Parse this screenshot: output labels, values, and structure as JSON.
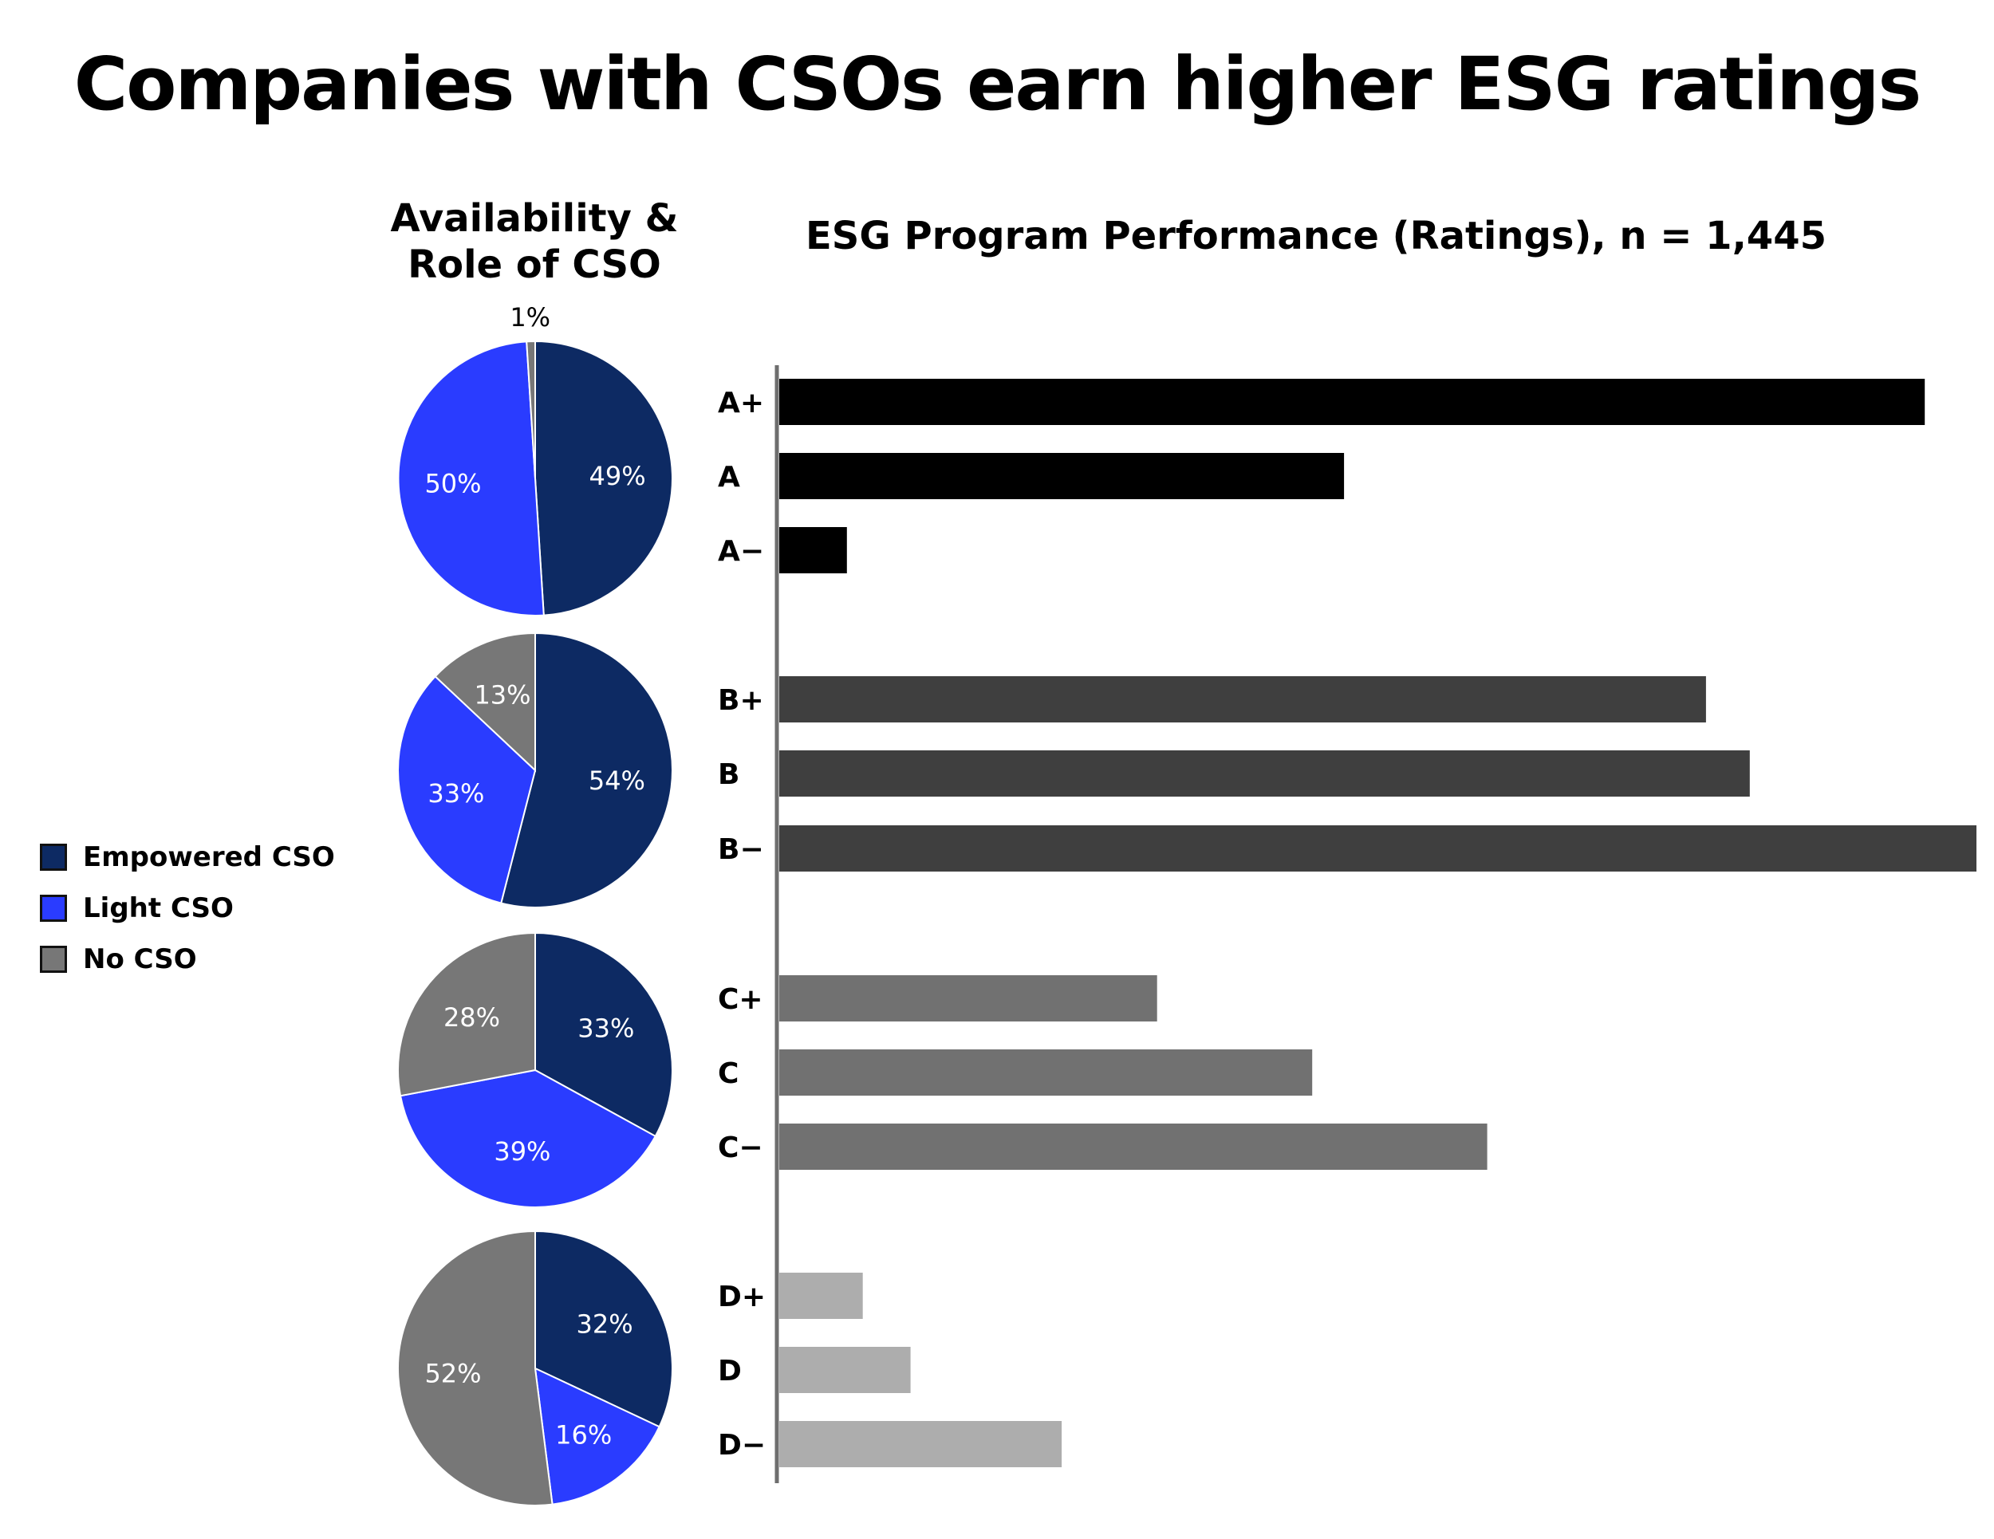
{
  "title": "Companies with CSOs earn higher ESG ratings",
  "pie_heading": {
    "line1": "Availability &",
    "line2": "Role of CSO"
  },
  "bar_heading": "ESG Program Performance (Ratings), n = 1,445",
  "legend": [
    {
      "label": "Empowered CSO",
      "color": "#0d2a63"
    },
    {
      "label": "Light CSO",
      "color": "#2a3cff"
    },
    {
      "label": "No CSO",
      "color": "#777777"
    }
  ],
  "chart_data": [
    {
      "type": "pie",
      "title": "Availability & Role of CSO",
      "categories": [
        "Empowered CSO",
        "Light CSO",
        "No CSO"
      ],
      "colors": [
        "#0d2a63",
        "#2a3cff",
        "#777777"
      ],
      "groups": [
        {
          "rating_group": "A",
          "values": [
            49,
            50,
            1
          ],
          "labels": [
            "49%",
            "50%",
            "1%"
          ]
        },
        {
          "rating_group": "B",
          "values": [
            54,
            33,
            13
          ],
          "labels": [
            "54%",
            "33%",
            "13%"
          ]
        },
        {
          "rating_group": "C",
          "values": [
            33,
            39,
            28
          ],
          "labels": [
            "33%",
            "39%",
            "28%"
          ]
        },
        {
          "rating_group": "D",
          "values": [
            32,
            16,
            52
          ],
          "labels": [
            "32%",
            "16%",
            "52%"
          ]
        }
      ]
    },
    {
      "type": "bar",
      "orientation": "horizontal",
      "title": "ESG Program Performance (Ratings), n = 1,445",
      "value_axis": "relative count",
      "categories": [
        "A+",
        "A",
        "A−",
        "B+",
        "B",
        "B−",
        "C+",
        "C",
        "C−",
        "D+",
        "D",
        "D−"
      ],
      "values": [
        288,
        142,
        17,
        233,
        244,
        301,
        95,
        134,
        178,
        21,
        33,
        71
      ],
      "group_colors": {
        "A": "#000000",
        "B": "#3f3f3f",
        "C": "#717171",
        "D": "#adadad"
      },
      "grid": false
    }
  ]
}
